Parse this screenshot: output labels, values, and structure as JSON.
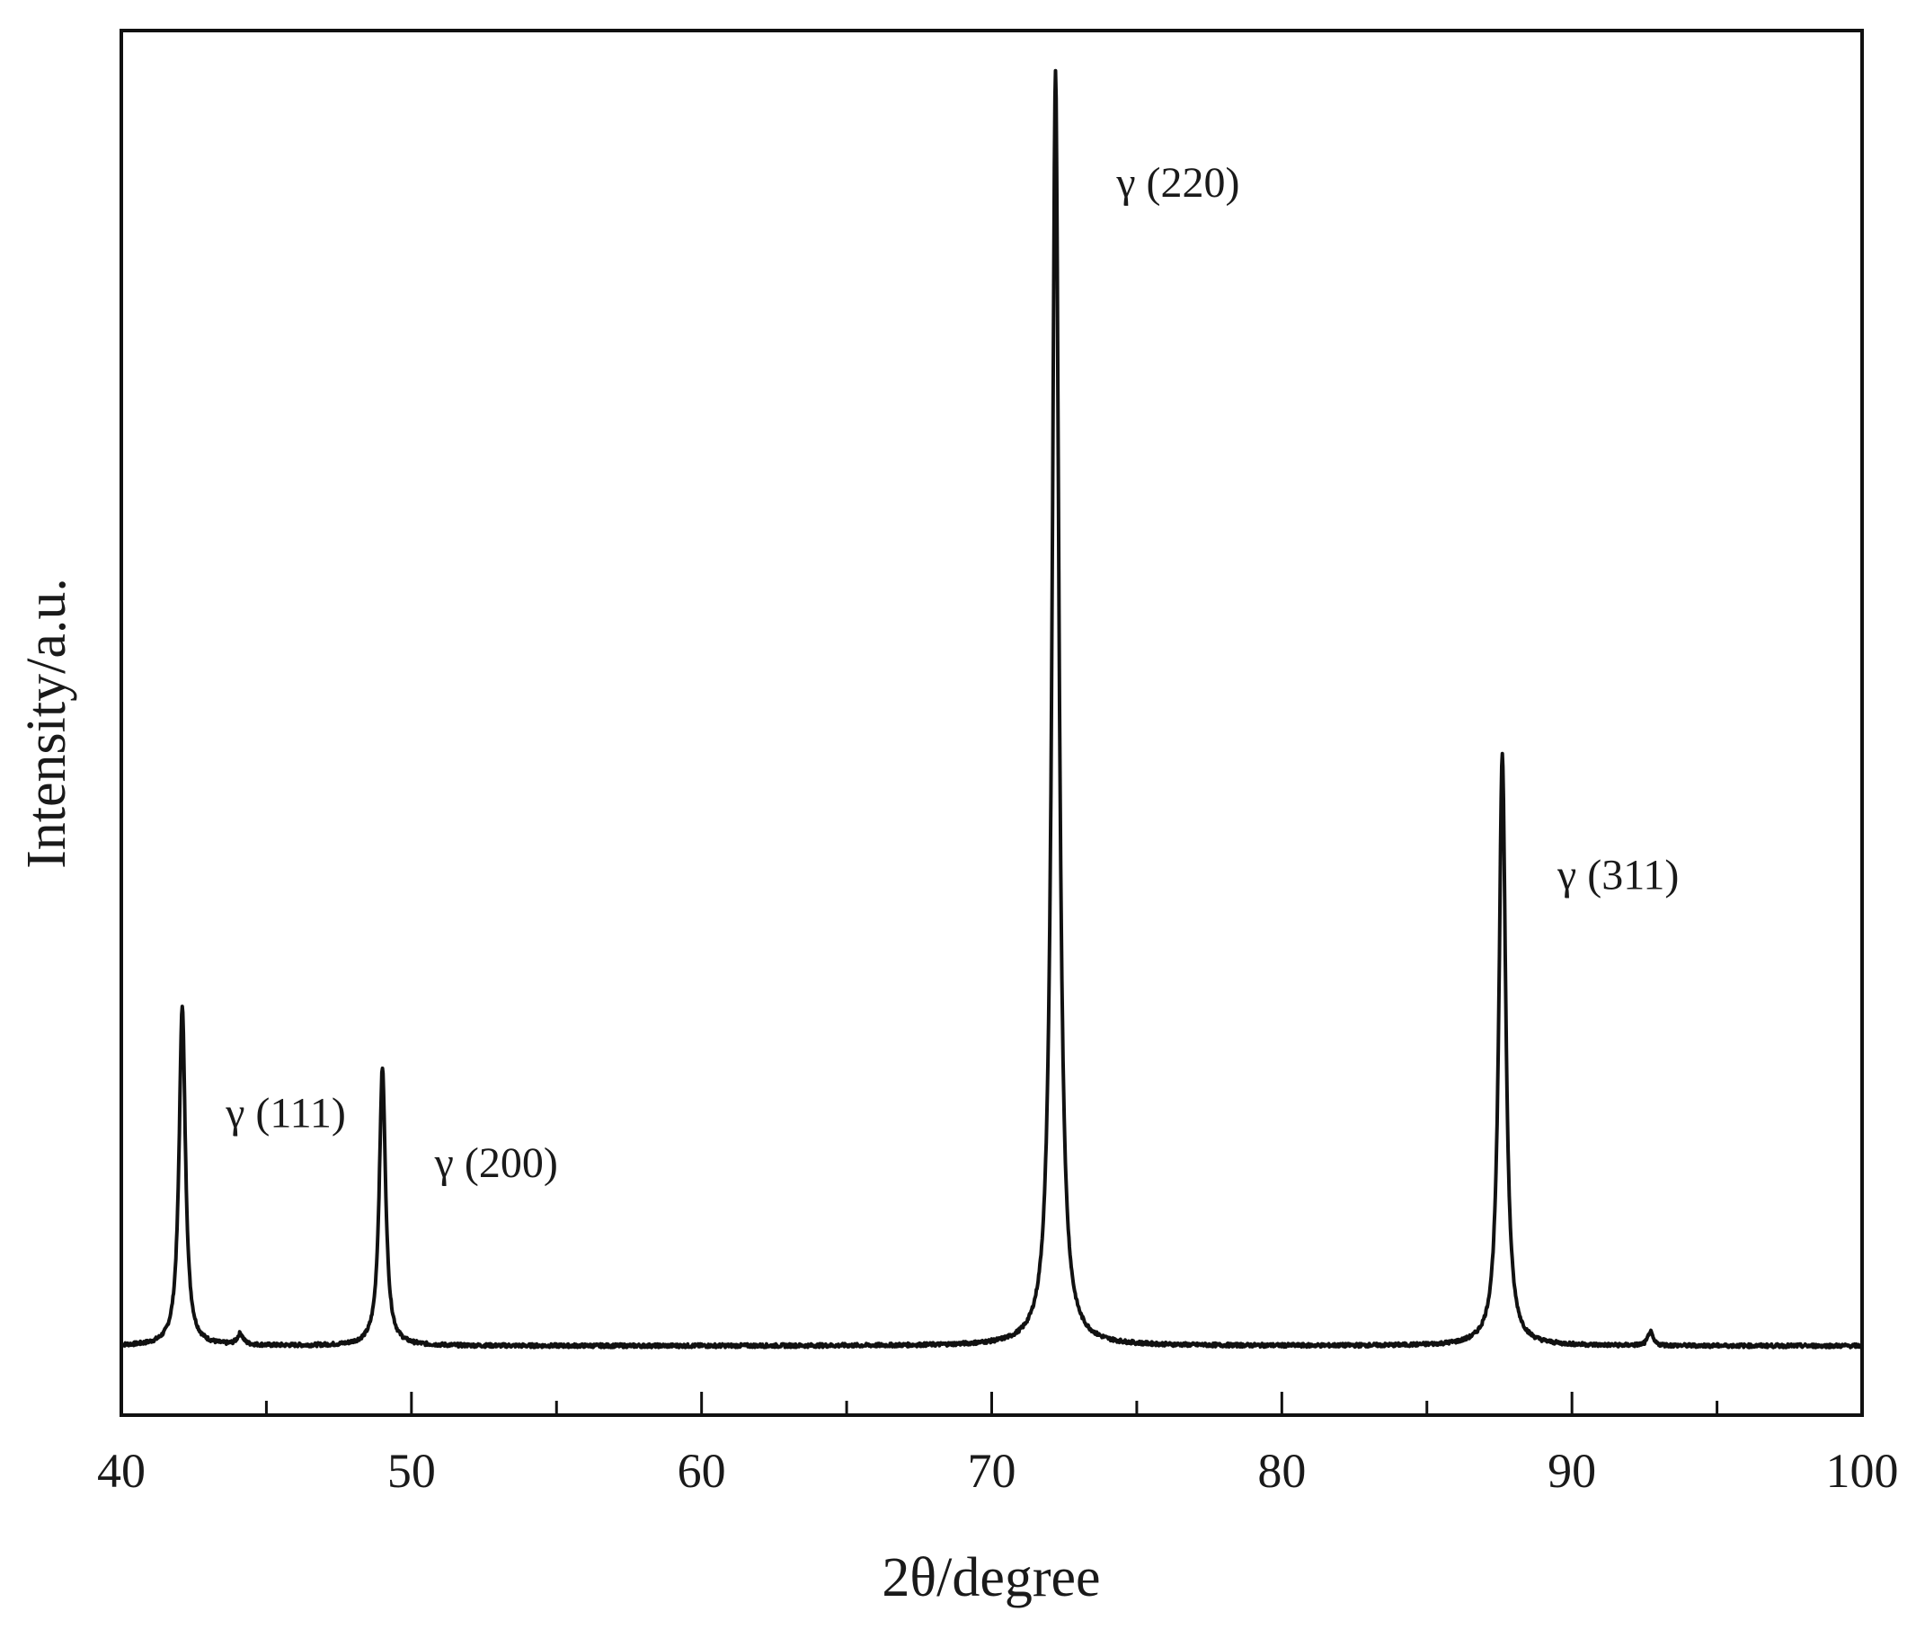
{
  "chart_data": {
    "type": "line",
    "xlabel": "2θ/degree",
    "ylabel": "Intensity/a.u.",
    "xlim": [
      40,
      100
    ],
    "ylim": [
      0,
      1000
    ],
    "x_ticks_major": [
      40,
      50,
      60,
      70,
      80,
      90,
      100
    ],
    "x_tick_labels": [
      "40",
      "50",
      "60",
      "70",
      "80",
      "90",
      "100"
    ],
    "x_ticks_minor": [
      45,
      55,
      65,
      75,
      85,
      95
    ],
    "grid": false,
    "y_ticks_shown": false,
    "line_color": "#111111",
    "baseline": 50,
    "peaks": [
      {
        "x": 42.1,
        "y": 246,
        "width": 0.13
      },
      {
        "x": 49.0,
        "y": 201,
        "width": 0.13
      },
      {
        "x": 72.2,
        "y": 920,
        "width": 0.14
      },
      {
        "x": 87.6,
        "y": 428,
        "width": 0.14
      },
      {
        "x": 44.1,
        "y": 8,
        "width": 0.12
      },
      {
        "x": 92.7,
        "y": 10,
        "width": 0.1
      }
    ],
    "annotations": [
      {
        "text": "γ (111)",
        "x": 43.6,
        "y": 208
      },
      {
        "text": "γ (200)",
        "x": 50.8,
        "y": 172
      },
      {
        "text": "γ (220)",
        "x": 74.3,
        "y": 880
      },
      {
        "text": "γ (311)",
        "x": 89.5,
        "y": 380
      }
    ]
  }
}
